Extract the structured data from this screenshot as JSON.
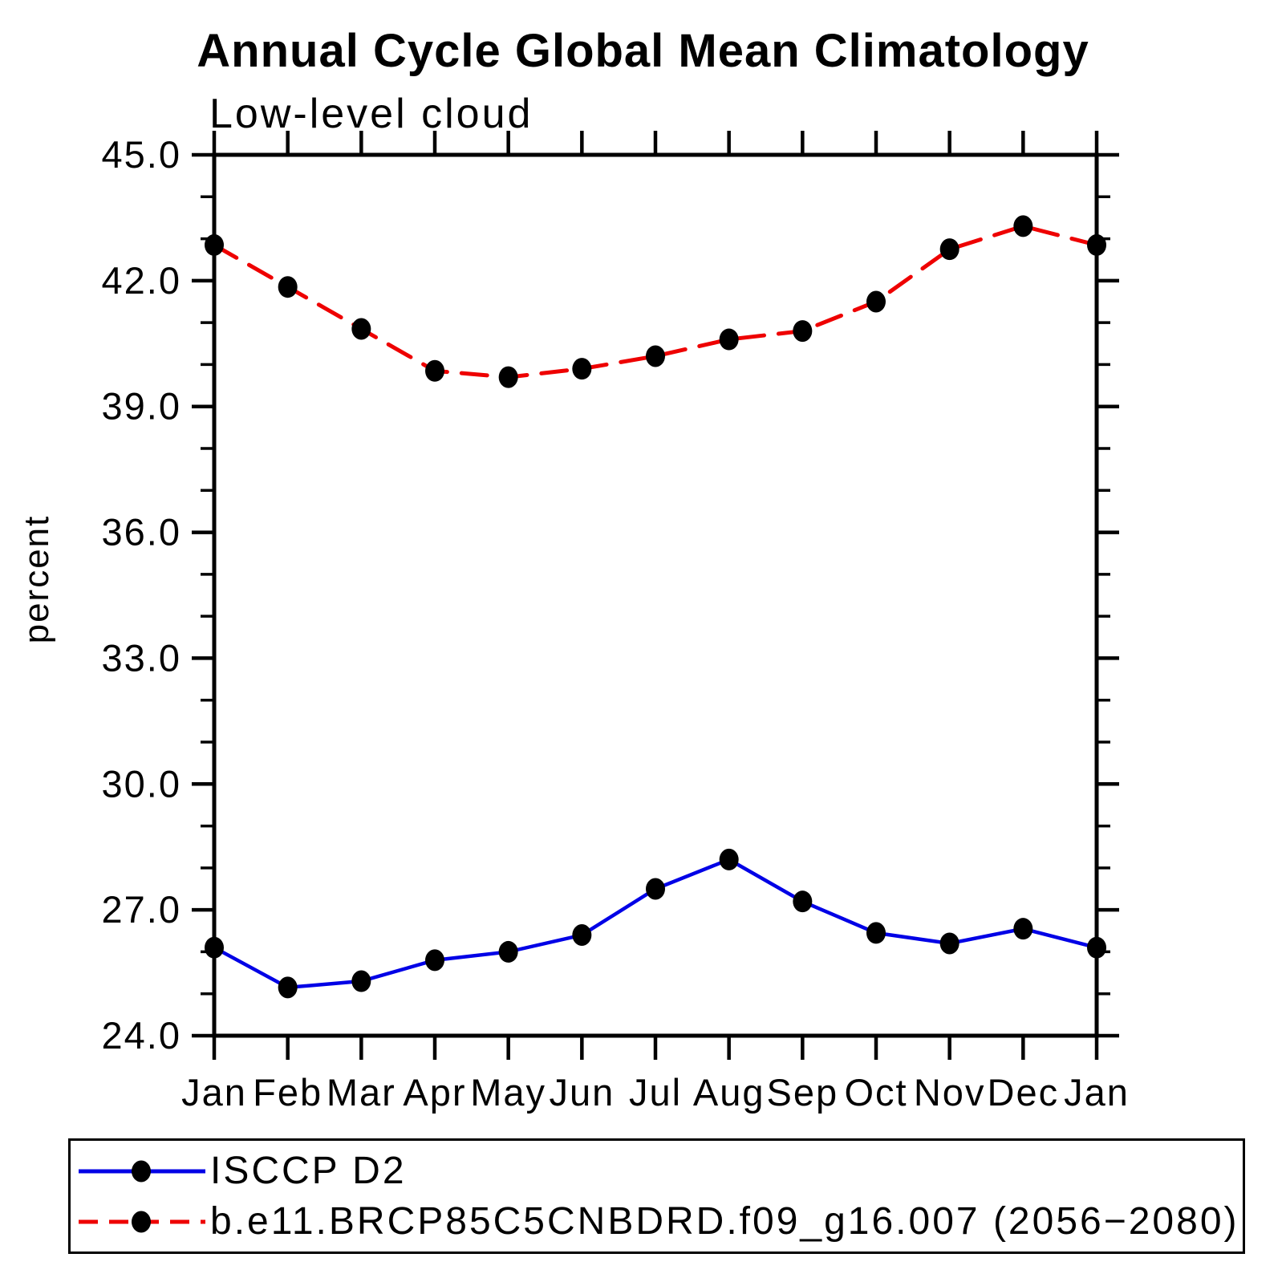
{
  "chart_data": {
    "type": "line",
    "title": "Annual Cycle Global Mean Climatology",
    "subtitle": "Low-level cloud",
    "ylabel": "percent",
    "categories": [
      "Jan",
      "Feb",
      "Mar",
      "Apr",
      "May",
      "Jun",
      "Jul",
      "Aug",
      "Sep",
      "Oct",
      "Nov",
      "Dec",
      "Jan"
    ],
    "series": [
      {
        "name": "ISCCP D2",
        "color": "#0000e6",
        "line_style": "solid",
        "marker": "black-dot",
        "values": [
          26.1,
          25.15,
          25.3,
          25.8,
          26.0,
          26.4,
          27.5,
          28.2,
          27.2,
          26.45,
          26.2,
          26.55,
          26.1
        ]
      },
      {
        "name": "b.e11.BRCP85C5CNBDRD.f09_g16.007 (2056−2080)",
        "color": "#ee0000",
        "line_style": "dashed",
        "marker": "black-dot",
        "values": [
          42.85,
          41.85,
          40.85,
          39.85,
          39.7,
          39.9,
          40.2,
          40.6,
          40.8,
          41.5,
          42.75,
          43.3,
          42.85
        ]
      }
    ],
    "ylim": [
      24,
      45
    ],
    "ytick_major": [
      24,
      27,
      30,
      33,
      36,
      39,
      42,
      45
    ],
    "ytick_minor_step": 1,
    "ytick_label_decimals": 1,
    "marker_color": "#000000",
    "grid": false,
    "legend_position": "bottom-box"
  }
}
